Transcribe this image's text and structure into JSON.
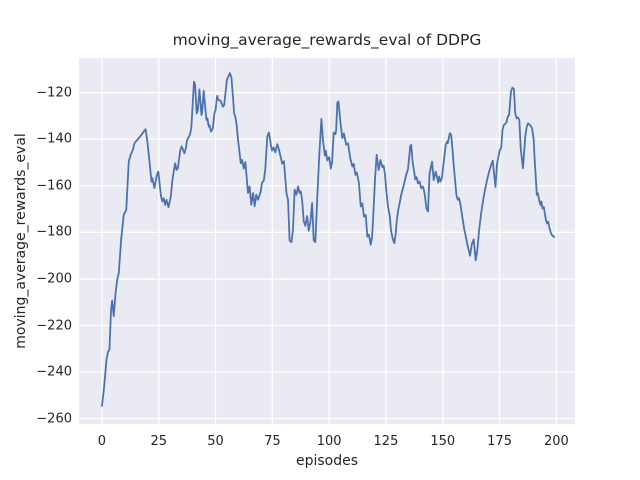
{
  "figure": {
    "kind": "matplotlib-seaborn-figure",
    "background": "#ffffff"
  },
  "chart_data": {
    "type": "line",
    "title": "moving_average_rewards_eval of DDPG",
    "xlabel": "episodes",
    "ylabel": "moving_average_rewards_eval",
    "xlim": [
      -10.1,
      208.2
    ],
    "ylim": [
      -262.3,
      -105.1
    ],
    "xticks": [
      0,
      25,
      50,
      75,
      100,
      125,
      150,
      175,
      200
    ],
    "yticks": [
      -260,
      -240,
      -220,
      -200,
      -180,
      -160,
      -140,
      -120
    ],
    "grid": true,
    "grid_color": "#ffffff",
    "legend_position": "none",
    "plot_background": "#eaeaf2",
    "line_color": "#4c72b0",
    "line_width": 1.8,
    "series": [
      {
        "name": "moving_average_rewards_eval",
        "points": [
          [
            0,
            -254.5
          ],
          [
            1,
            -246
          ],
          [
            2,
            -234.7
          ],
          [
            2.7,
            -231.1
          ],
          [
            3.3,
            -230.4
          ],
          [
            4,
            -213.3
          ],
          [
            4.5,
            -209.3
          ],
          [
            5.2,
            -216
          ],
          [
            6,
            -206
          ],
          [
            6.7,
            -200.4
          ],
          [
            7.4,
            -197.5
          ],
          [
            8.5,
            -182.5
          ],
          [
            9.6,
            -172.4
          ],
          [
            10.7,
            -170.3
          ],
          [
            11.8,
            -149.6
          ],
          [
            12.6,
            -146.7
          ],
          [
            13.6,
            -144.6
          ],
          [
            14.3,
            -141.7
          ],
          [
            15.8,
            -140
          ],
          [
            17.3,
            -138.2
          ],
          [
            18.4,
            -136.7
          ],
          [
            19.2,
            -135.7
          ],
          [
            20,
            -141
          ],
          [
            21,
            -150.3
          ],
          [
            21.8,
            -158.2
          ],
          [
            22.2,
            -156.7
          ],
          [
            23.1,
            -161
          ],
          [
            24,
            -156
          ],
          [
            24.8,
            -153.9
          ],
          [
            26,
            -164.6
          ],
          [
            26.6,
            -166.7
          ],
          [
            27.2,
            -165.3
          ],
          [
            27.8,
            -168.2
          ],
          [
            28.4,
            -166
          ],
          [
            29.3,
            -169.2
          ],
          [
            30.3,
            -164.6
          ],
          [
            31,
            -157.5
          ],
          [
            32.2,
            -150.3
          ],
          [
            32.8,
            -153.2
          ],
          [
            33.4,
            -152.4
          ],
          [
            34.5,
            -144.6
          ],
          [
            35.1,
            -143.1
          ],
          [
            36.3,
            -146
          ],
          [
            36.9,
            -143.9
          ],
          [
            37.5,
            -140.3
          ],
          [
            38.7,
            -138.1
          ],
          [
            39.3,
            -135.5
          ],
          [
            40,
            -124
          ],
          [
            40.5,
            -115.3
          ],
          [
            41,
            -116.5
          ],
          [
            41.7,
            -128.9
          ],
          [
            42.2,
            -127.5
          ],
          [
            42.9,
            -118.6
          ],
          [
            43.8,
            -129.6
          ],
          [
            44.1,
            -128.2
          ],
          [
            44.8,
            -119.2
          ],
          [
            45.3,
            -124.6
          ],
          [
            46,
            -131.7
          ],
          [
            46.4,
            -131
          ],
          [
            47,
            -134.6
          ],
          [
            47.3,
            -133.9
          ],
          [
            48,
            -136.7
          ],
          [
            48.8,
            -135.3
          ],
          [
            49.5,
            -128.9
          ],
          [
            50,
            -127.5
          ],
          [
            50.7,
            -121.4
          ],
          [
            51.3,
            -123.2
          ],
          [
            52.2,
            -123.4
          ],
          [
            53.2,
            -126
          ],
          [
            53.8,
            -125.3
          ],
          [
            55,
            -114.5
          ],
          [
            56.3,
            -111.6
          ],
          [
            57,
            -113.5
          ],
          [
            57.7,
            -122.4
          ],
          [
            58.2,
            -129
          ],
          [
            58.7,
            -130.3
          ],
          [
            59.3,
            -134
          ],
          [
            59.9,
            -140.3
          ],
          [
            60.5,
            -145.3
          ],
          [
            61.1,
            -150.3
          ],
          [
            61.7,
            -148.9
          ],
          [
            62.4,
            -152.6
          ],
          [
            63.1,
            -149.8
          ],
          [
            64.3,
            -163.1
          ],
          [
            65,
            -160.3
          ],
          [
            65.7,
            -168.1
          ],
          [
            66.5,
            -163.1
          ],
          [
            67.2,
            -168.8
          ],
          [
            67.9,
            -163.8
          ],
          [
            68.7,
            -166
          ],
          [
            69.9,
            -162.4
          ],
          [
            70.4,
            -158.9
          ],
          [
            71.3,
            -157.5
          ],
          [
            71.9,
            -152.6
          ],
          [
            72.8,
            -138.6
          ],
          [
            73.5,
            -137.1
          ],
          [
            74.3,
            -142.1
          ],
          [
            74.9,
            -144.9
          ],
          [
            75.6,
            -143.5
          ],
          [
            76.3,
            -145.6
          ],
          [
            77.2,
            -142.1
          ],
          [
            77.8,
            -144.2
          ],
          [
            78.7,
            -147.7
          ],
          [
            79.3,
            -150.5
          ],
          [
            80.1,
            -149.4
          ],
          [
            81.2,
            -163.1
          ],
          [
            81.9,
            -166
          ],
          [
            82.6,
            -183.5
          ],
          [
            83.4,
            -184.2
          ],
          [
            84.1,
            -178.6
          ],
          [
            84.8,
            -161.7
          ],
          [
            85.6,
            -163.8
          ],
          [
            86.3,
            -160.3
          ],
          [
            87,
            -163.1
          ],
          [
            87.5,
            -162.4
          ],
          [
            88.1,
            -166
          ],
          [
            88.8,
            -175.1
          ],
          [
            89.5,
            -177.2
          ],
          [
            90.3,
            -173
          ],
          [
            91,
            -179.3
          ],
          [
            91.7,
            -175.8
          ],
          [
            92.5,
            -167.4
          ],
          [
            93.2,
            -183.5
          ],
          [
            93.9,
            -184.2
          ],
          [
            94.8,
            -164.5
          ],
          [
            95.6,
            -147.7
          ],
          [
            96.6,
            -131.2
          ],
          [
            97.3,
            -140.7
          ],
          [
            98.1,
            -147
          ],
          [
            98.5,
            -144.9
          ],
          [
            99.2,
            -149.1
          ],
          [
            100,
            -147.7
          ],
          [
            100.7,
            -152.6
          ],
          [
            101.3,
            -149.8
          ],
          [
            102,
            -137.1
          ],
          [
            102.8,
            -137.8
          ],
          [
            103.1,
            -135.7
          ],
          [
            103.6,
            -124.2
          ],
          [
            104.1,
            -123.8
          ],
          [
            105,
            -133
          ],
          [
            105.8,
            -139.5
          ],
          [
            106.5,
            -137.5
          ],
          [
            107.5,
            -142.4
          ],
          [
            108.3,
            -141.7
          ],
          [
            109.3,
            -148.2
          ],
          [
            110.2,
            -151.7
          ],
          [
            110.8,
            -150.6
          ],
          [
            111.6,
            -155.3
          ],
          [
            112.2,
            -154.3
          ],
          [
            113.1,
            -158.9
          ],
          [
            113.9,
            -168.9
          ],
          [
            114.6,
            -167.5
          ],
          [
            115.3,
            -173.2
          ],
          [
            116.1,
            -172.5
          ],
          [
            116.8,
            -181.8
          ],
          [
            117.5,
            -181
          ],
          [
            118.3,
            -185.3
          ],
          [
            118.9,
            -181.8
          ],
          [
            119.4,
            -173.2
          ],
          [
            120.2,
            -157
          ],
          [
            120.9,
            -146.7
          ],
          [
            121.8,
            -153.2
          ],
          [
            122.6,
            -148.9
          ],
          [
            123.4,
            -152
          ],
          [
            124,
            -151.4
          ],
          [
            124.6,
            -155.3
          ],
          [
            125.1,
            -161.7
          ],
          [
            125.9,
            -168.9
          ],
          [
            126.6,
            -172.5
          ],
          [
            127.3,
            -179.6
          ],
          [
            128.1,
            -183.2
          ],
          [
            128.7,
            -184.6
          ],
          [
            129.3,
            -180.3
          ],
          [
            129.8,
            -174.6
          ],
          [
            130.4,
            -170.3
          ],
          [
            131,
            -167.5
          ],
          [
            131.7,
            -163.9
          ],
          [
            132.5,
            -161
          ],
          [
            133.2,
            -158.2
          ],
          [
            133.9,
            -155.3
          ],
          [
            134.7,
            -152.9
          ],
          [
            135.7,
            -142.9
          ],
          [
            136.1,
            -142.4
          ],
          [
            136.7,
            -149.6
          ],
          [
            137.3,
            -153.2
          ],
          [
            137.9,
            -157.2
          ],
          [
            138.5,
            -156.3
          ],
          [
            139.1,
            -158.9
          ],
          [
            139.8,
            -158.2
          ],
          [
            140.5,
            -161
          ],
          [
            141.3,
            -160.3
          ],
          [
            142,
            -163.2
          ],
          [
            142.8,
            -169.6
          ],
          [
            143.5,
            -171
          ],
          [
            144.2,
            -154.6
          ],
          [
            145.3,
            -149.6
          ],
          [
            146,
            -157.5
          ],
          [
            146.9,
            -153.9
          ],
          [
            148,
            -158.6
          ],
          [
            148.4,
            -156
          ],
          [
            149,
            -158.2
          ],
          [
            149.6,
            -156.7
          ],
          [
            150.7,
            -147.4
          ],
          [
            151.3,
            -142.4
          ],
          [
            151.9,
            -141
          ],
          [
            152.2,
            -141.7
          ],
          [
            153.1,
            -137.4
          ],
          [
            153.7,
            -138.1
          ],
          [
            154.3,
            -144.6
          ],
          [
            154.8,
            -151
          ],
          [
            155.4,
            -157.4
          ],
          [
            156,
            -163.9
          ],
          [
            156.6,
            -166
          ],
          [
            157.2,
            -165.3
          ],
          [
            157.8,
            -168.2
          ],
          [
            158.8,
            -174.6
          ],
          [
            159.5,
            -178.9
          ],
          [
            160.3,
            -182.5
          ],
          [
            161,
            -186
          ],
          [
            162,
            -190
          ],
          [
            162.8,
            -185
          ],
          [
            163.6,
            -183
          ],
          [
            164.5,
            -192
          ],
          [
            165.1,
            -188.5
          ],
          [
            166,
            -179
          ],
          [
            166.9,
            -171.8
          ],
          [
            167.8,
            -166
          ],
          [
            168.6,
            -161.7
          ],
          [
            169.5,
            -157.5
          ],
          [
            170.4,
            -153.9
          ],
          [
            171.3,
            -151
          ],
          [
            172,
            -149.2
          ],
          [
            173.2,
            -160.5
          ],
          [
            173.9,
            -150.5
          ],
          [
            174.5,
            -147.5
          ],
          [
            175.1,
            -144.6
          ],
          [
            175.7,
            -143.9
          ],
          [
            176.3,
            -136
          ],
          [
            176.9,
            -133.8
          ],
          [
            177.5,
            -133.4
          ],
          [
            178,
            -132.8
          ],
          [
            178.6,
            -130.3
          ],
          [
            179.2,
            -129.5
          ],
          [
            180,
            -119.5
          ],
          [
            180.7,
            -117.8
          ],
          [
            181.3,
            -118.4
          ],
          [
            181.9,
            -128.8
          ],
          [
            182.5,
            -131
          ],
          [
            183.1,
            -130.7
          ],
          [
            183.7,
            -131.7
          ],
          [
            184.3,
            -143.9
          ],
          [
            185.3,
            -152.5
          ],
          [
            186.3,
            -139
          ],
          [
            186.9,
            -135
          ],
          [
            187.5,
            -133.2
          ],
          [
            188.1,
            -133.6
          ],
          [
            188.7,
            -134.2
          ],
          [
            189.3,
            -135.3
          ],
          [
            190,
            -140
          ],
          [
            190.5,
            -149.6
          ],
          [
            191,
            -157.5
          ],
          [
            191.4,
            -163.9
          ],
          [
            191.9,
            -163.2
          ],
          [
            192.4,
            -166.1
          ],
          [
            193,
            -168.2
          ],
          [
            193.4,
            -166.8
          ],
          [
            193.9,
            -169.7
          ],
          [
            194.5,
            -169.2
          ],
          [
            194.9,
            -171.8
          ],
          [
            195.4,
            -174.7
          ],
          [
            195.9,
            -176.1
          ],
          [
            196.4,
            -175.4
          ],
          [
            196.8,
            -177.5
          ],
          [
            197.4,
            -179.7
          ],
          [
            198,
            -181.1
          ],
          [
            199,
            -182
          ]
        ]
      }
    ]
  }
}
